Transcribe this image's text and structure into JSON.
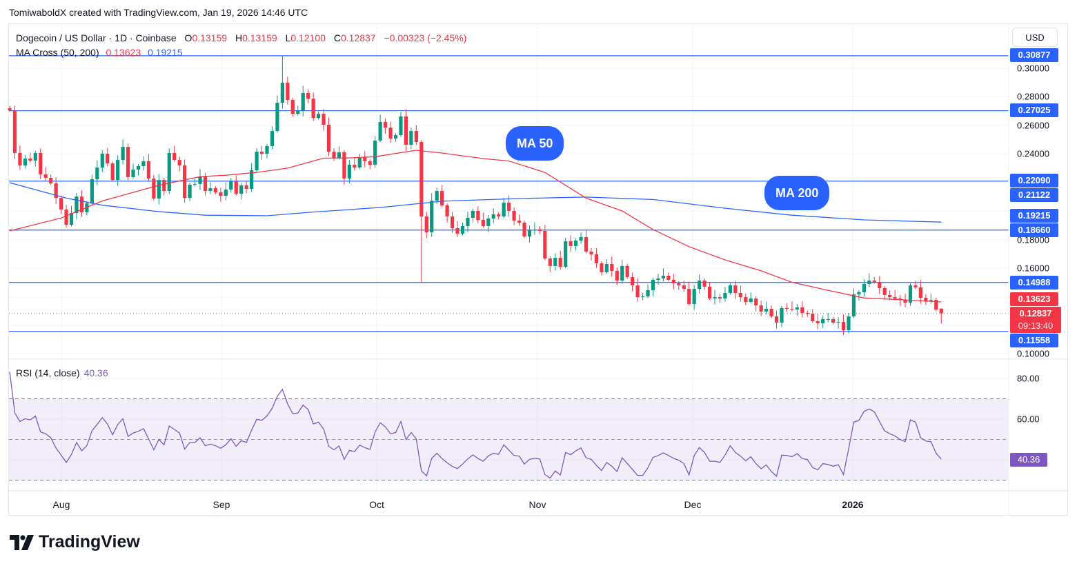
{
  "credit": "TomiwaboldX created with TradingView.com, Jan 19, 2026 14:46 UTC",
  "legend": {
    "symbol": "Dogecoin / US Dollar · 1D · Coinbase",
    "o_key": "O",
    "o": "0.13159",
    "h_key": "H",
    "h": "0.13159",
    "l_key": "L",
    "l": "0.12100",
    "c_key": "C",
    "c": "0.12837",
    "change": "−0.00323 (−2.45%)",
    "ma_name": "MA Cross (50, 200)",
    "ma50_value": "0.13623",
    "ma200_value": "0.19215"
  },
  "rsi_legend": {
    "name": "RSI (14, close)",
    "value": "40.36"
  },
  "currency": "USD",
  "annotations": {
    "ma50": "MA 50",
    "ma200": "MA 200"
  },
  "price_ticks": [
    "0.30000",
    "0.28000",
    "0.26000",
    "0.24000",
    "0.18000",
    "0.16000",
    "0.10000"
  ],
  "rsi_ticks": [
    "80.00",
    "60.00"
  ],
  "price_labels": [
    {
      "text": "0.30877",
      "color": "blue"
    },
    {
      "text": "0.27025",
      "color": "blue"
    },
    {
      "text": "0.22090",
      "color": "blue"
    },
    {
      "text": "0.21122",
      "color": "blue"
    },
    {
      "text": "0.19215",
      "color": "blue"
    },
    {
      "text": "0.18660",
      "color": "blue"
    },
    {
      "text": "0.14988",
      "color": "blue"
    },
    {
      "text": "0.13623",
      "color": "red"
    },
    {
      "text": "0.12837",
      "color": "red",
      "countdown": "09:13:40"
    },
    {
      "text": "0.11558",
      "color": "blue"
    }
  ],
  "rsi_label": "40.36",
  "months": [
    "Aug",
    "Sep",
    "Oct",
    "Nov",
    "Dec",
    "2026"
  ],
  "logo_text": "TradingView",
  "colors": {
    "up": "#089981",
    "down": "#F23645",
    "hline": "#2962FF",
    "ma50": "#F23645",
    "ma200": "#2962FF",
    "rsi": "#7E57C2"
  },
  "chart_data": {
    "type": "candlestick",
    "interval": "1D",
    "start_date": "2025-07-22",
    "end_date": "2026-01-19",
    "ylim": [
      0.095,
      0.318
    ],
    "first_open": 0.272,
    "last_open": 0.13159,
    "close": [
      0.2705,
      0.2406,
      0.2319,
      0.2367,
      0.2353,
      0.2406,
      0.2256,
      0.2232,
      0.2193,
      0.2091,
      0.201,
      0.1903,
      0.1985,
      0.2101,
      0.199,
      0.2053,
      0.2222,
      0.2304,
      0.2401,
      0.2333,
      0.2217,
      0.2357,
      0.2449,
      0.2237,
      0.229,
      0.2314,
      0.2348,
      0.2227,
      0.2087,
      0.2217,
      0.214,
      0.2406,
      0.2357,
      0.2319,
      0.2091,
      0.2184,
      0.2189,
      0.2242,
      0.214,
      0.2159,
      0.213,
      0.2106,
      0.215,
      0.2208,
      0.2121,
      0.2179,
      0.2155,
      0.2285,
      0.2415,
      0.2401,
      0.2454,
      0.256,
      0.2758,
      0.2899,
      0.2778,
      0.2681,
      0.2705,
      0.2826,
      0.2787,
      0.2652,
      0.2681,
      0.2604,
      0.2415,
      0.2372,
      0.2411,
      0.2227,
      0.2324,
      0.2304,
      0.2377,
      0.2348,
      0.2324,
      0.2493,
      0.2623,
      0.2584,
      0.2507,
      0.2531,
      0.2662,
      0.2464,
      0.256,
      0.2483,
      0.1961,
      0.185,
      0.2072,
      0.214,
      0.2039,
      0.1961,
      0.1879,
      0.1841,
      0.1894,
      0.1952,
      0.2,
      0.1937,
      0.1894,
      0.1947,
      0.1976,
      0.1961,
      0.2058,
      0.2,
      0.1932,
      0.1918,
      0.1821,
      0.1865,
      0.187,
      0.186,
      0.1667,
      0.1614,
      0.1671,
      0.1609,
      0.1787,
      0.1754,
      0.1792,
      0.1816,
      0.1715,
      0.1696,
      0.1633,
      0.157,
      0.1628,
      0.158,
      0.1512,
      0.1614,
      0.1536,
      0.1478,
      0.1396,
      0.1401,
      0.1444,
      0.1517,
      0.1527,
      0.1546,
      0.1517,
      0.1493,
      0.1478,
      0.1454,
      0.1348,
      0.1454,
      0.1512,
      0.1469,
      0.1387,
      0.1396,
      0.1386,
      0.1425,
      0.1478,
      0.1425,
      0.1396,
      0.1362,
      0.1386,
      0.1338,
      0.1295,
      0.1314,
      0.1261,
      0.1217,
      0.1319,
      0.1314,
      0.1309,
      0.1324,
      0.1285,
      0.128,
      0.1227,
      0.1213,
      0.1242,
      0.1242,
      0.1217,
      0.1222,
      0.1164,
      0.1261,
      0.1415,
      0.143,
      0.1488,
      0.1512,
      0.1502,
      0.1459,
      0.1411,
      0.1396,
      0.1386,
      0.1377,
      0.1357,
      0.1478,
      0.1464,
      0.1391,
      0.1372,
      0.1377,
      0.1309,
      0.12837
    ],
    "extremes": [
      {
        "date": "2025-09-13",
        "high": 0.3088
      },
      {
        "date": "2025-10-10",
        "low": 0.1498
      },
      {
        "date": "2026-01-19",
        "high": 0.13159,
        "low": 0.121
      }
    ],
    "horizontal_lines": [
      0.30877,
      0.27025,
      0.2209,
      0.1866,
      0.14988,
      0.11558
    ],
    "ma50": [
      [
        "2025-07-22",
        0.186
      ],
      [
        "2025-08-01",
        0.195
      ],
      [
        "2025-08-09",
        0.207
      ],
      [
        "2025-08-20",
        0.218
      ],
      [
        "2025-08-28",
        0.224
      ],
      [
        "2025-09-02",
        0.225
      ],
      [
        "2025-09-08",
        0.227
      ],
      [
        "2025-09-14",
        0.23
      ],
      [
        "2025-09-21",
        0.237
      ],
      [
        "2025-09-25",
        0.237
      ],
      [
        "2025-10-01",
        0.238
      ],
      [
        "2025-10-09",
        0.2425
      ],
      [
        "2025-10-14",
        0.2406
      ],
      [
        "2025-10-22",
        0.2367
      ],
      [
        "2025-10-27",
        0.235
      ],
      [
        "2025-11-03",
        0.227
      ],
      [
        "2025-11-11",
        0.209
      ],
      [
        "2025-11-18",
        0.2
      ],
      [
        "2025-11-24",
        0.187
      ],
      [
        "2025-12-01",
        0.175
      ],
      [
        "2025-12-08",
        0.1657
      ],
      [
        "2025-12-15",
        0.158
      ],
      [
        "2025-12-21",
        0.15
      ],
      [
        "2025-12-28",
        0.1444
      ],
      [
        "2026-01-04",
        0.139
      ],
      [
        "2026-01-10",
        0.138
      ],
      [
        "2026-01-19",
        0.13623
      ]
    ],
    "ma200": [
      [
        "2025-07-22",
        0.2198
      ],
      [
        "2025-08-02",
        0.209
      ],
      [
        "2025-08-09",
        0.204
      ],
      [
        "2025-08-20",
        0.1995
      ],
      [
        "2025-08-29",
        0.197
      ],
      [
        "2025-09-10",
        0.1966
      ],
      [
        "2025-09-18",
        0.199
      ],
      [
        "2025-10-02",
        0.2024
      ],
      [
        "2025-10-14",
        0.2068
      ],
      [
        "2025-10-29",
        0.2087
      ],
      [
        "2025-11-11",
        0.2097
      ],
      [
        "2025-11-24",
        0.208
      ],
      [
        "2025-12-08",
        0.2019
      ],
      [
        "2025-12-21",
        0.197
      ],
      [
        "2026-01-04",
        0.1937
      ],
      [
        "2026-01-19",
        0.19215
      ]
    ],
    "rsi": {
      "period": 14,
      "ylim": [
        20,
        86
      ],
      "bands": [
        30,
        50,
        70
      ],
      "values": [
        83.3,
        63.0,
        58.8,
        60.2,
        59.6,
        61.5,
        53.7,
        52.8,
        50.8,
        45.8,
        42.3,
        38.7,
        42.6,
        48.5,
        44.4,
        47.0,
        54.3,
        57.4,
        60.7,
        57.6,
        52.3,
        57.4,
        60.2,
        51.5,
        53.2,
        54.0,
        55.3,
        50.3,
        44.9,
        50.0,
        47.4,
        56.6,
        54.9,
        53.2,
        45.3,
        48.5,
        48.5,
        50.8,
        46.9,
        47.7,
        46.9,
        45.7,
        47.4,
        50.3,
        46.6,
        49.4,
        48.5,
        54.5,
        59.9,
        59.4,
        61.6,
        65.3,
        71.2,
        74.6,
        67.5,
        62.7,
        63.0,
        66.9,
        64.7,
        57.6,
        58.5,
        55.1,
        46.6,
        44.9,
        46.8,
        40.2,
        44.6,
        44.0,
        47.2,
        46.0,
        45.1,
        53.7,
        58.2,
        56.2,
        52.8,
        53.4,
        58.8,
        50.0,
        53.4,
        50.3,
        34.5,
        32.1,
        40.7,
        43.2,
        40.6,
        38.5,
        36.7,
        35.7,
        37.9,
        40.4,
        42.4,
        40.6,
        39.3,
        41.9,
        43.2,
        42.7,
        47.4,
        44.7,
        42.1,
        41.8,
        37.9,
        40.2,
        40.7,
        40.4,
        32.7,
        31.0,
        34.5,
        32.5,
        43.6,
        42.5,
        44.4,
        45.8,
        41.0,
        40.2,
        37.3,
        34.7,
        38.7,
        36.8,
        34.2,
        41.0,
        38.1,
        35.3,
        32.3,
        32.3,
        36.1,
        41.2,
        42.1,
        43.4,
        42.1,
        40.7,
        39.8,
        38.1,
        32.5,
        42.1,
        46.0,
        43.6,
        39.3,
        39.3,
        38.7,
        42.3,
        46.9,
        43.6,
        41.8,
        39.5,
        41.5,
        38.1,
        35.6,
        37.5,
        34.2,
        31.9,
        42.3,
        42.1,
        41.5,
        43.0,
        40.6,
        40.1,
        36.2,
        35.1,
        38.1,
        37.7,
        36.8,
        37.6,
        32.7,
        45.3,
        58.5,
        59.4,
        63.8,
        65.0,
        63.6,
        58.8,
        54.2,
        52.8,
        51.7,
        50.0,
        48.9,
        59.6,
        58.5,
        50.8,
        49.2,
        48.9,
        43.2,
        40.36
      ]
    }
  }
}
